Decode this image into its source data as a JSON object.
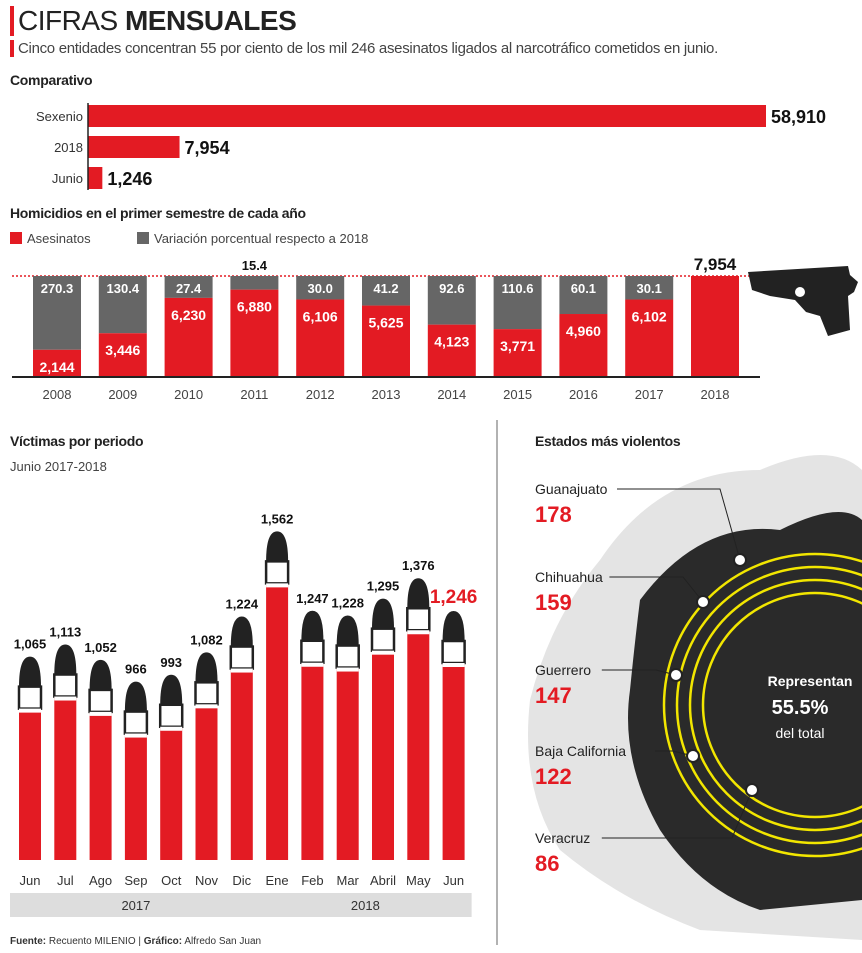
{
  "header": {
    "title_light": "CIFRAS",
    "title_bold": "MENSUALES",
    "subtitle": "Cinco entidades concentran 55 por ciento de los mil 246 asesinatos ligados al narcotráfico cometidos en junio."
  },
  "colors": {
    "red": "#e31b23",
    "gray": "#666666",
    "yellow": "#f2e600",
    "dark": "#2a2a2a"
  },
  "chart_data": [
    {
      "type": "bar",
      "title": "Comparativo",
      "orientation": "horizontal",
      "categories": [
        "Sexenio",
        "2018",
        "Junio"
      ],
      "values": [
        58910,
        7954,
        1246
      ],
      "labels": [
        "58,910",
        "7,954",
        "1,246"
      ]
    },
    {
      "type": "bar",
      "title": "Homicidios en el primer semestre de cada año",
      "stacked": true,
      "legend": [
        "Asesinatos",
        "Variación porcentual respecto a 2018"
      ],
      "categories": [
        "2008",
        "2009",
        "2010",
        "2011",
        "2012",
        "2013",
        "2014",
        "2015",
        "2016",
        "2017",
        "2018"
      ],
      "series": [
        {
          "name": "Asesinatos",
          "values": [
            2144,
            3446,
            6230,
            6880,
            6106,
            5625,
            4123,
            3771,
            4960,
            6102,
            7954
          ],
          "labels": [
            "2,144",
            "3,446",
            "6,230",
            "6,880",
            "6,106",
            "5,625",
            "4,123",
            "3,771",
            "4,960",
            "6,102",
            "7,954"
          ]
        },
        {
          "name": "Variación porcentual respecto a 2018",
          "values": [
            270.3,
            130.4,
            27.4,
            15.4,
            30.0,
            41.2,
            92.6,
            110.6,
            60.1,
            30.1,
            null
          ],
          "labels": [
            "270.3",
            "130.4",
            "27.4",
            "15.4",
            "30.0",
            "41.2",
            "92.6",
            "110.6",
            "60.1",
            "30.1",
            ""
          ]
        }
      ],
      "ylim": [
        0,
        7954
      ]
    },
    {
      "type": "bar",
      "title": "Víctimas por periodo",
      "subtitle": "Junio 2017-2018",
      "categories": [
        "Jun",
        "Jul",
        "Ago",
        "Sep",
        "Oct",
        "Nov",
        "Dic",
        "Ene",
        "Feb",
        "Mar",
        "Abril",
        "May",
        "Jun"
      ],
      "values": [
        1065,
        1113,
        1052,
        966,
        993,
        1082,
        1224,
        1562,
        1247,
        1228,
        1295,
        1376,
        1246
      ],
      "labels": [
        "1,065",
        "1,113",
        "1,052",
        "966",
        "993",
        "1,082",
        "1,224",
        "1,562",
        "1,247",
        "1,228",
        "1,295",
        "1,376",
        "1,246"
      ],
      "groups": [
        {
          "label": "2017",
          "count": 7
        },
        {
          "label": "2018",
          "count": 6
        }
      ]
    },
    {
      "type": "table",
      "title": "Estados más violentos",
      "rows": [
        {
          "state": "Guanajuato",
          "value": "178"
        },
        {
          "state": "Chihuahua",
          "value": "159"
        },
        {
          "state": "Guerrero",
          "value": "147"
        },
        {
          "state": "Baja California",
          "value": "122"
        },
        {
          "state": "Veracruz",
          "value": "86"
        }
      ],
      "center": {
        "line1": "Representan",
        "line2": "55.5%",
        "line3": "del total"
      }
    }
  ],
  "footer": {
    "source_label": "Fuente:",
    "source": "Recuento MILENIO",
    "sep": "|",
    "credit_label": "Gráfico:",
    "credit": "Alfredo San Juan"
  }
}
